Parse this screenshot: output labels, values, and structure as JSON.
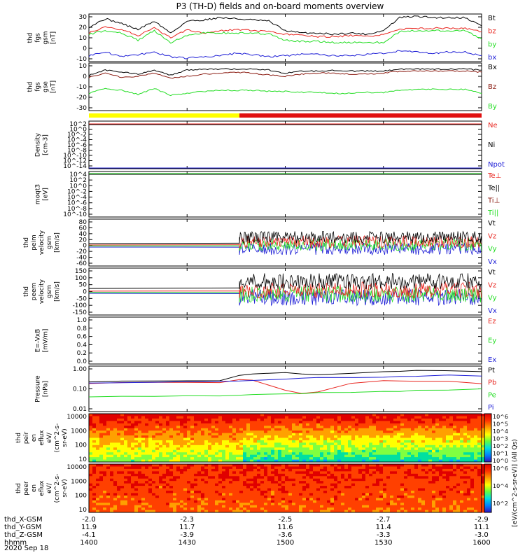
{
  "title": "P3 (TH-D) fields and on-board moments overview",
  "date_label": "2020 Sep 18",
  "xaxis": {
    "row_labels": [
      "thd_X-GSM",
      "thd_Y-GSM",
      "thd_Z-GSM",
      "hhmm"
    ],
    "columns": [
      {
        "values": [
          "-2.0",
          "11.9",
          "-4.1",
          "1400"
        ]
      },
      {
        "values": [
          "-2.3",
          "11.7",
          "-3.9",
          "1430"
        ]
      },
      {
        "values": [
          "-2.5",
          "11.6",
          "-3.6",
          "1500"
        ]
      },
      {
        "values": [
          "-2.7",
          "11.4",
          "-3.3",
          "1530"
        ]
      },
      {
        "values": [
          "-2.9",
          "11.1",
          "-3.0",
          "1600"
        ]
      }
    ]
  },
  "colors": {
    "black": "#000000",
    "red": "#e8251f",
    "green": "#22dd22",
    "blue": "#1c1cd6",
    "darkred": "#8a1a10",
    "yellow": "#ffff00"
  },
  "panels": [
    {
      "ylabel": [
        "thd",
        "fgs",
        "gsm",
        "[nT]"
      ],
      "yticks": [
        "30",
        "20",
        "10",
        "0",
        "-10"
      ],
      "legend": [
        {
          "text": "Bt",
          "color": "#000000"
        },
        {
          "text": "bz",
          "color": "#e8251f"
        },
        {
          "text": "by",
          "color": "#22dd22"
        },
        {
          "text": "bx",
          "color": "#1c1cd6"
        }
      ]
    },
    {
      "ylabel": [
        "thd",
        "fgs",
        "gse",
        "[nT]"
      ],
      "yticks": [
        "10",
        "0",
        "-10",
        "-20",
        "-30"
      ],
      "legend": [
        {
          "text": "Bx",
          "color": "#000000"
        },
        {
          "text": "Bz",
          "color": "#8a1a10"
        },
        {
          "text": "By",
          "color": "#22dd22"
        }
      ]
    },
    {
      "ylabel": [
        "Density",
        "[cm-3]"
      ],
      "yticks": [
        "10^2",
        "10^0",
        "10^-2",
        "10^-4",
        "10^-6",
        "10^-8",
        "10^-10",
        "10^-12",
        "10^-14"
      ],
      "legend": [
        {
          "text": "Ne",
          "color": "#e8251f"
        },
        {
          "text": "Ni",
          "color": "#000000"
        },
        {
          "text": "Npot",
          "color": "#1c1cd6"
        }
      ]
    },
    {
      "ylabel": [
        "moqt3",
        "[eV]"
      ],
      "yticks": [
        "10^4",
        "10^2",
        "10^0",
        "10^-2",
        "10^-4",
        "10^-6",
        "10^-8",
        "10^-10"
      ],
      "legend": [
        {
          "text": "Te⊥",
          "color": "#e8251f"
        },
        {
          "text": "Te||",
          "color": "#000000"
        },
        {
          "text": "Ti⊥",
          "color": "#8a1a10"
        },
        {
          "text": "Ti||",
          "color": "#22dd22"
        }
      ]
    },
    {
      "ylabel": [
        "thd",
        "peim",
        "velocity",
        "gsm",
        "[km/s]"
      ],
      "yticks": [
        "80",
        "60",
        "40",
        "20",
        "0",
        "-20",
        "-40",
        "-60"
      ],
      "legend": [
        {
          "text": "Vt",
          "color": "#000000"
        },
        {
          "text": "Vz",
          "color": "#e8251f"
        },
        {
          "text": "Vy",
          "color": "#22dd22"
        },
        {
          "text": "Vx",
          "color": "#1c1cd6"
        }
      ]
    },
    {
      "ylabel": [
        "thd",
        "peem",
        "velocity",
        "gsm",
        "[km/s]"
      ],
      "yticks": [
        "150",
        "100",
        "50",
        "0",
        "-50",
        "-100",
        "-150"
      ],
      "legend": [
        {
          "text": "Vt",
          "color": "#000000"
        },
        {
          "text": "Vz",
          "color": "#e8251f"
        },
        {
          "text": "Vy",
          "color": "#22dd22"
        },
        {
          "text": "Vx",
          "color": "#1c1cd6"
        }
      ]
    },
    {
      "ylabel": [
        "E=-VxB",
        "[mV/m]"
      ],
      "yticks": [
        "1.0",
        "0.8",
        "0.6",
        "0.4",
        "0.2",
        "0.0"
      ],
      "legend": [
        {
          "text": "Ez",
          "color": "#e8251f"
        },
        {
          "text": "Ey",
          "color": "#22dd22"
        },
        {
          "text": "Ex",
          "color": "#1c1cd6"
        }
      ]
    },
    {
      "ylabel": [
        "Pressure",
        "[nPa]"
      ],
      "yticks": [
        "1.00",
        "0.10",
        "0.01"
      ],
      "legend": [
        {
          "text": "Pt",
          "color": "#000000"
        },
        {
          "text": "Pb",
          "color": "#e8251f"
        },
        {
          "text": "Pe",
          "color": "#22dd22"
        },
        {
          "text": "Pi",
          "color": "#1c1cd6"
        }
      ]
    },
    {
      "ylabel": [
        "thd",
        "peir",
        "en",
        "eflux",
        "eV/",
        "(cm^2-s-",
        "sr-eV)"
      ],
      "yticks": [
        "10000",
        "1000",
        "100",
        "10"
      ],
      "legend": []
    },
    {
      "ylabel": [
        "thd",
        "peer",
        "en",
        "eflux",
        "eV/",
        "(cm^2-s-",
        "sr-eV)"
      ],
      "yticks": [
        "10000",
        "1000",
        "100",
        "10"
      ],
      "legend": []
    }
  ],
  "colorbar": {
    "ticks_top": [
      "10^6",
      "10^5",
      "10^4",
      "10^3",
      "10^2",
      "10^1",
      "10^0"
    ],
    "ticks_bottom": [
      "10^6",
      "10^4",
      "10^2"
    ],
    "label": "[eV/(cm^2-s-sr-eV)] (All Qs)"
  },
  "chart_data": {
    "type": "line",
    "title": "P3 (TH-D) fields and on-board moments overview",
    "x_ticks_hhmm": [
      "1400",
      "1430",
      "1500",
      "1530",
      "1600"
    ],
    "x_range_hhmm": [
      "1400",
      "1600"
    ],
    "panel_1_fgs_gsm_nT": {
      "ylim": [
        -10,
        30
      ],
      "x_hhmm": [
        "1400",
        "1405",
        "1410",
        "1415",
        "1420",
        "1425",
        "1430",
        "1435",
        "1440",
        "1445",
        "1450",
        "1455",
        "1500",
        "1505",
        "1510",
        "1515",
        "1520",
        "1525",
        "1530",
        "1535",
        "1540",
        "1545",
        "1550",
        "1555",
        "1600"
      ],
      "series": [
        {
          "name": "Bt",
          "values": [
            19,
            26,
            22,
            17,
            24,
            14,
            24,
            25,
            27,
            26,
            25,
            24,
            16,
            14,
            14,
            13,
            14,
            13,
            16,
            27,
            28,
            27,
            27,
            27,
            20
          ]
        },
        {
          "name": "bz",
          "values": [
            14,
            19,
            17,
            12,
            18,
            10,
            17,
            14,
            16,
            17,
            16,
            15,
            13,
            12,
            11,
            11,
            12,
            11,
            13,
            17,
            18,
            18,
            18,
            18,
            15
          ]
        },
        {
          "name": "by",
          "values": [
            13,
            16,
            14,
            8,
            16,
            6,
            12,
            14,
            14,
            14,
            14,
            13,
            8,
            7,
            7,
            6,
            6,
            6,
            6,
            15,
            16,
            16,
            16,
            16,
            9
          ]
        },
        {
          "name": "bx",
          "values": [
            -5,
            -2,
            -6,
            -4,
            -2,
            -6,
            -7,
            -6,
            -5,
            -3,
            -4,
            -6,
            -5,
            -4,
            -4,
            -5,
            -5,
            -4,
            -3,
            -1,
            -2,
            -3,
            -2,
            -2,
            -5
          ]
        }
      ]
    },
    "panel_2_fgs_gse_nT": {
      "ylim": [
        -35,
        12
      ],
      "x_hhmm": [
        "1400",
        "1405",
        "1410",
        "1415",
        "1420",
        "1425",
        "1430",
        "1435",
        "1440",
        "1445",
        "1450",
        "1455",
        "1500",
        "1505",
        "1510",
        "1515",
        "1520",
        "1525",
        "1530",
        "1535",
        "1540",
        "1545",
        "1550",
        "1555",
        "1600"
      ],
      "series": [
        {
          "name": "Bx",
          "values": [
            0,
            5,
            3,
            1,
            5,
            0,
            5,
            6,
            6,
            6,
            6,
            5,
            2,
            4,
            4,
            5,
            4,
            4,
            4,
            6,
            6,
            6,
            6,
            6,
            5
          ]
        },
        {
          "name": "Bz",
          "values": [
            -2,
            2,
            -2,
            -1,
            2,
            -3,
            -1,
            1,
            2,
            3,
            2,
            0,
            -1,
            1,
            2,
            2,
            1,
            1,
            2,
            4,
            4,
            4,
            4,
            4,
            3
          ]
        },
        {
          "name": "By",
          "values": [
            -18,
            -13,
            -15,
            -19,
            -13,
            -20,
            -18,
            -16,
            -15,
            -15,
            -15,
            -16,
            -16,
            -17,
            -17,
            -18,
            -18,
            -17,
            -17,
            -15,
            -14,
            -14,
            -14,
            -14,
            -18
          ]
        }
      ]
    },
    "panel_5_peim_velocity_kms": {
      "ylim": [
        -65,
        90
      ],
      "note_start_hhmm": "1446",
      "series": [
        {
          "name": "Vt",
          "level": 30
        },
        {
          "name": "Vz",
          "level": 15
        },
        {
          "name": "Vy",
          "level": 5
        },
        {
          "name": "Vx",
          "level": -8
        }
      ]
    },
    "panel_6_peem_velocity_kms": {
      "ylim": [
        -160,
        160
      ],
      "series": [
        {
          "name": "Vt",
          "level": 70
        },
        {
          "name": "Vz",
          "level": 10
        },
        {
          "name": "Vy",
          "level": -20
        },
        {
          "name": "Vx",
          "level": -40
        }
      ]
    },
    "panel_8_pressure_nPa": {
      "yscale": "log",
      "ylim": [
        0.01,
        1.3
      ],
      "x_hhmm": [
        "1400",
        "1410",
        "1420",
        "1430",
        "1440",
        "1446",
        "1450",
        "1500",
        "1505",
        "1510",
        "1520",
        "1530",
        "1535",
        "1540",
        "1550",
        "1600"
      ],
      "series": [
        {
          "name": "Pt",
          "values": [
            0.25,
            0.26,
            0.27,
            0.27,
            0.28,
            0.48,
            0.55,
            0.65,
            0.55,
            0.5,
            0.6,
            0.7,
            0.75,
            0.8,
            0.8,
            0.7
          ]
        },
        {
          "name": "Pb",
          "values": [
            0.21,
            0.22,
            0.22,
            0.22,
            0.22,
            0.3,
            0.28,
            0.1,
            0.07,
            0.08,
            0.2,
            0.28,
            0.27,
            0.25,
            0.26,
            0.2
          ]
        },
        {
          "name": "Pe",
          "values": [
            0.05,
            0.05,
            0.05,
            0.055,
            0.055,
            0.06,
            0.06,
            0.065,
            0.07,
            0.075,
            0.08,
            0.085,
            0.09,
            0.095,
            0.1,
            0.11
          ]
        },
        {
          "name": "Pi",
          "values": [
            0.22,
            0.23,
            0.23,
            0.24,
            0.25,
            0.27,
            0.27,
            0.32,
            0.35,
            0.38,
            0.38,
            0.4,
            0.42,
            0.42,
            0.5,
            0.45
          ]
        }
      ]
    }
  }
}
